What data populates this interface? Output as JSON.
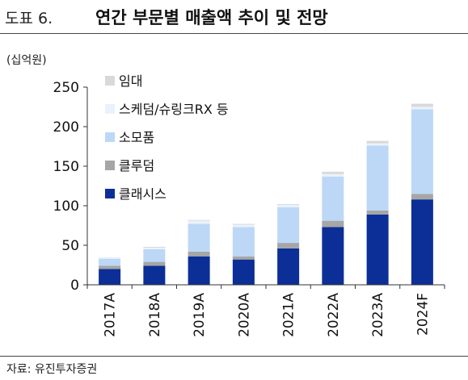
{
  "header": {
    "figure_label": "도표 6.",
    "title": "연간 부문별 매출액 추이 및 전망"
  },
  "unit_label": "(십억원)",
  "source": "자료: 유진투자증권",
  "chart_data": {
    "type": "bar",
    "stacked": true,
    "categories": [
      "2017A",
      "2018A",
      "2019A",
      "2020A",
      "2021A",
      "2022A",
      "2023A",
      "2024F"
    ],
    "ylim": [
      0,
      250
    ],
    "yticks": [
      0,
      50,
      100,
      150,
      200,
      250
    ],
    "grid": false,
    "legend_position": "top-left",
    "series": [
      {
        "name": "클래시스",
        "color": "#0b2f96",
        "values": [
          20,
          24,
          36,
          32,
          46,
          73,
          89,
          108
        ]
      },
      {
        "name": "클루덤",
        "color": "#a6a6a6",
        "values": [
          4,
          5,
          6,
          4,
          7,
          8,
          5,
          7
        ]
      },
      {
        "name": "소모품",
        "color": "#bcd8f6",
        "values": [
          9,
          16,
          35,
          37,
          45,
          56,
          82,
          107
        ]
      },
      {
        "name": "스케덤/슈링크RX 등",
        "color": "#e9f2fc",
        "values": [
          2,
          2,
          4,
          3,
          3,
          3,
          3,
          3
        ]
      },
      {
        "name": "임대",
        "color": "#d9d9d9",
        "values": [
          0,
          1,
          1,
          1,
          1,
          3,
          3,
          4
        ]
      }
    ]
  }
}
